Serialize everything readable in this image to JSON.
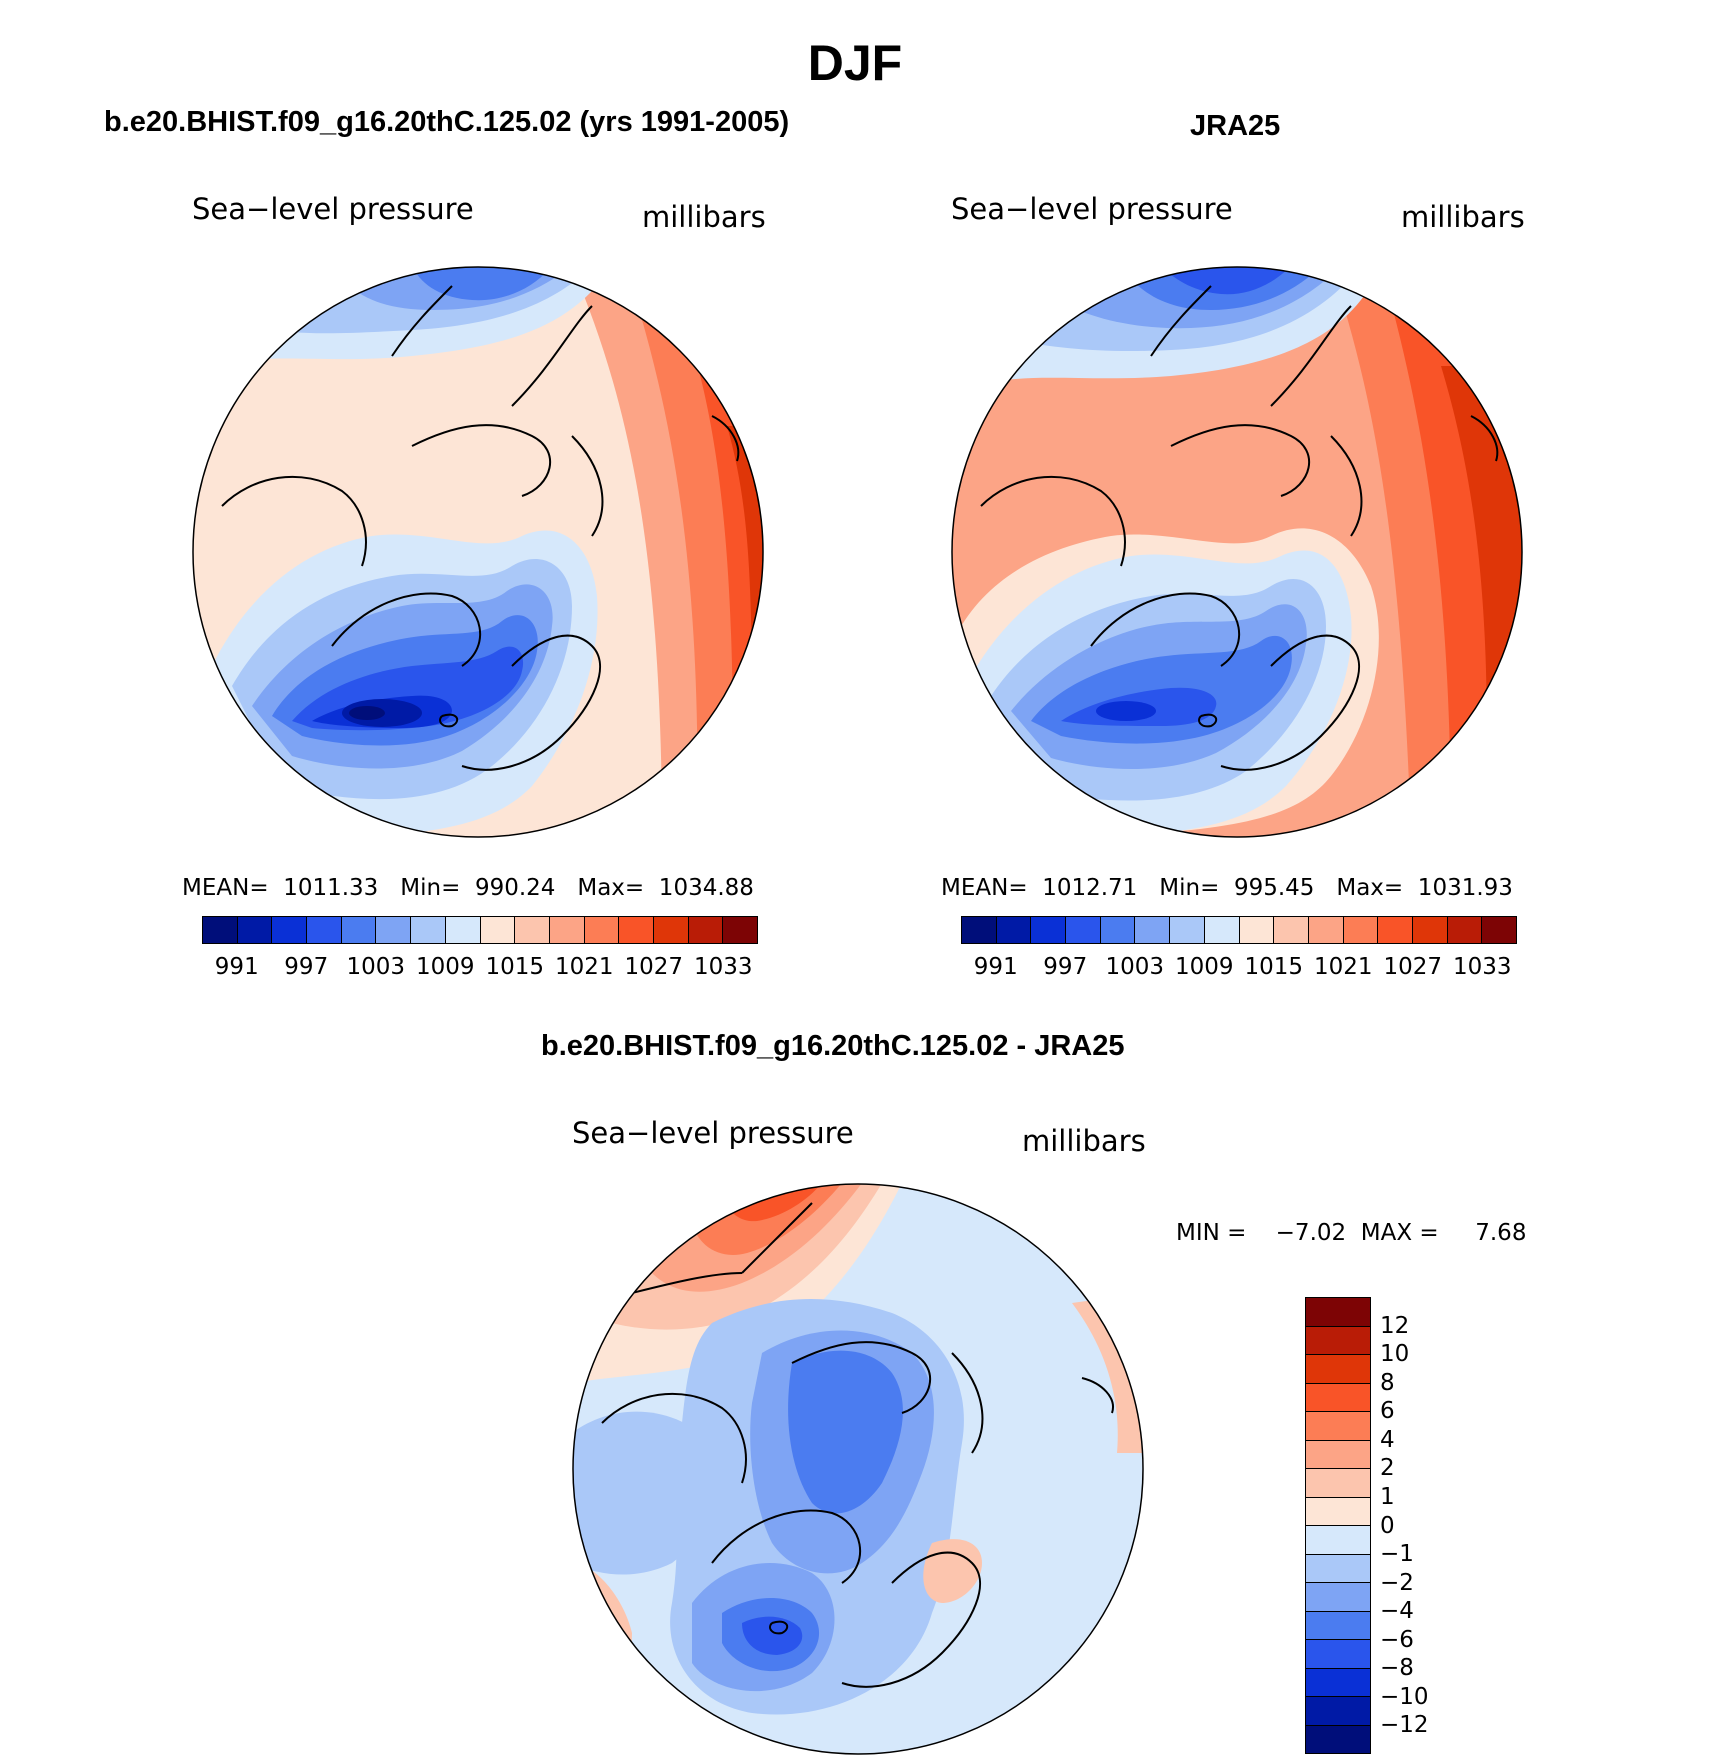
{
  "figure": {
    "title": "DJF"
  },
  "panels": [
    {
      "title": "b.e20.BHIST.f09_g16.20thC.125.02 (yrs 1991-2005)",
      "left_label": "Sea−level pressure",
      "right_label": "millibars",
      "stats": "MEAN=  1011.33   Min=  990.24   Max=  1034.88"
    },
    {
      "title": "JRA25",
      "left_label": "Sea−level pressure",
      "right_label": "millibars",
      "stats": "MEAN=  1012.71   Min=  995.45   Max=  1031.93"
    },
    {
      "title": "b.e20.BHIST.f09_g16.20thC.125.02 - JRA25",
      "left_label": "Sea−level pressure",
      "right_label": "millibars",
      "stats": "MIN =    −7.02  MAX =     7.68"
    }
  ],
  "colorbar_abs": {
    "colors": [
      "#000e7a",
      "#001aa6",
      "#0a30d6",
      "#2a55ec",
      "#4b7cf0",
      "#7ea4f4",
      "#aac8f8",
      "#d6e8fb",
      "#fde5d6",
      "#fcc5ae",
      "#fca486",
      "#fc7d55",
      "#f95428",
      "#df3608",
      "#b91c06",
      "#7d0405"
    ],
    "tick_labels": [
      "991",
      "997",
      "1003",
      "1009",
      "1015",
      "1021",
      "1027",
      "1033"
    ]
  },
  "colorbar_diff": {
    "colors": [
      "#7d0405",
      "#b91c06",
      "#df3608",
      "#f95428",
      "#fc7d55",
      "#fca486",
      "#fcc5ae",
      "#fde5d6",
      "#d6e8fb",
      "#aac8f8",
      "#7ea4f4",
      "#4b7cf0",
      "#2a55ec",
      "#0a30d6",
      "#001aa6",
      "#000e7a"
    ],
    "tick_labels": [
      "12",
      "10",
      "8",
      "6",
      "4",
      "2",
      "1",
      "0",
      "−1",
      "−2",
      "−4",
      "−6",
      "−8",
      "−10",
      "−12"
    ]
  }
}
